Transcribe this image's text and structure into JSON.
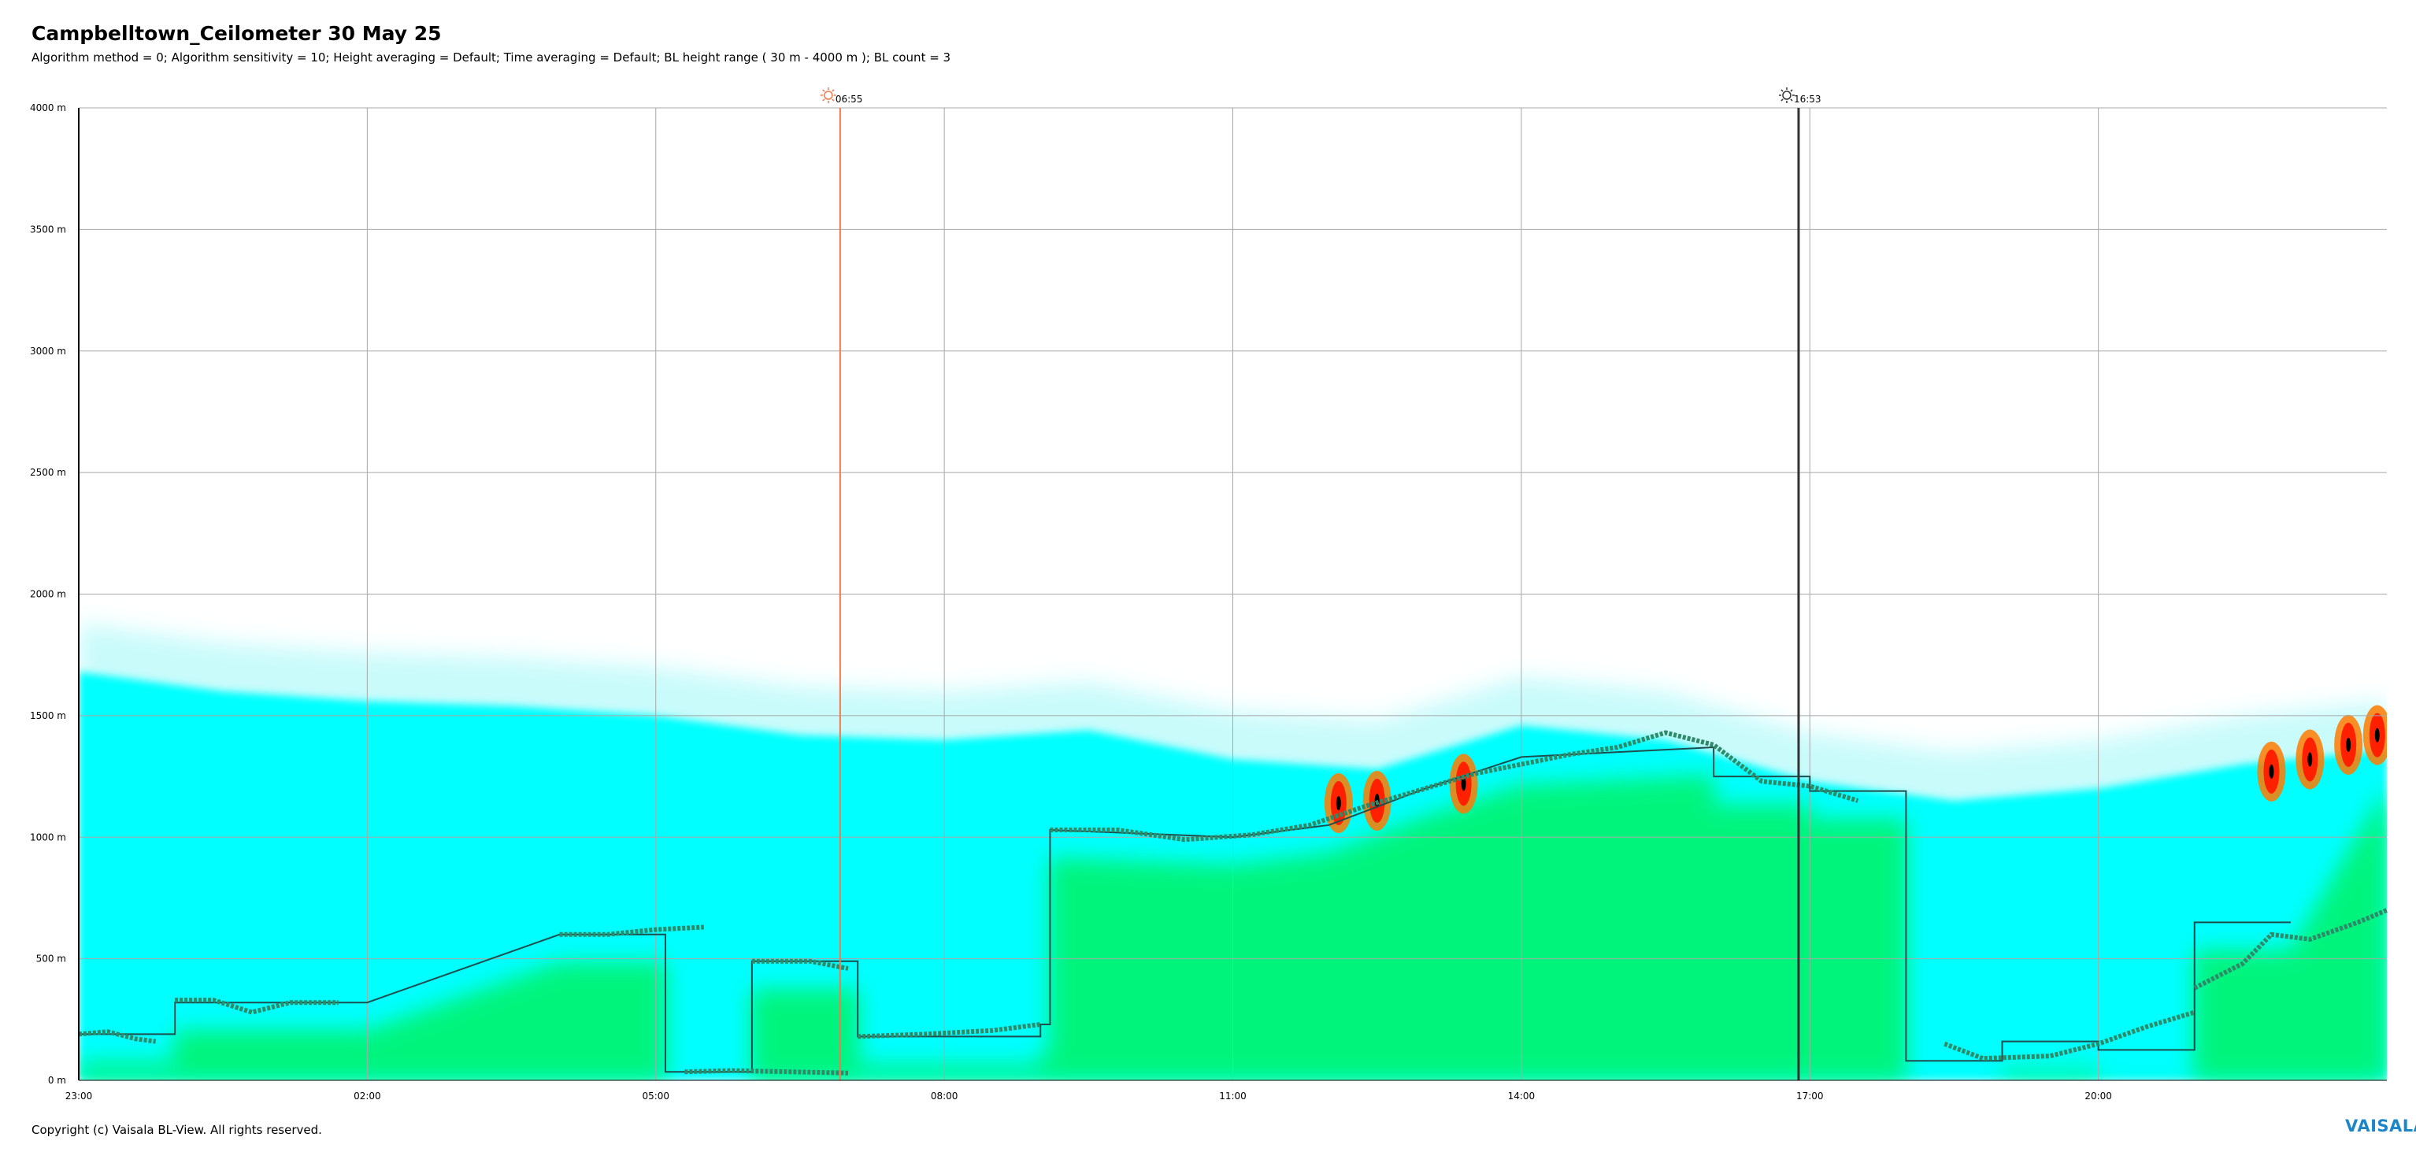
{
  "header": {
    "title": "Campbelltown_Ceilometer 30 May 25",
    "subtitle": "Algorithm method = 0; Algorithm sensitivity = 10; Height averaging = Default; Time averaging = Default; BL height range ( 30 m - 4000 m ); BL count = 3"
  },
  "footer": {
    "copyright": "Copyright (c) Vaisala BL-View. All rights reserved.",
    "brand": "VAISALA"
  },
  "chart_data": {
    "type": "heatmap",
    "title": "Campbelltown_Ceilometer 30 May 25",
    "xlabel": "",
    "ylabel": "",
    "x_tick_labels": [
      "23:00",
      "02:00",
      "05:00",
      "08:00",
      "11:00",
      "14:00",
      "17:00",
      "20:00"
    ],
    "y_tick_labels": [
      "0 m",
      "500 m",
      "1000 m",
      "1500 m",
      "2000 m",
      "2500 m",
      "3000 m",
      "3500 m",
      "4000 m"
    ],
    "x_range_hours": [
      23,
      47
    ],
    "ylim": [
      0,
      4000
    ],
    "grid": true,
    "events": [
      {
        "label": "06:55",
        "time": 30.917,
        "type": "sunrise",
        "color": "#f07a4e"
      },
      {
        "label": "16:53",
        "time": 40.883,
        "type": "sunset",
        "color": "#333333"
      }
    ],
    "backscatter_top_height": [
      [
        23.0,
        1880
      ],
      [
        24.5,
        1800
      ],
      [
        26.0,
        1760
      ],
      [
        27.5,
        1740
      ],
      [
        29.0,
        1700
      ],
      [
        30.5,
        1620
      ],
      [
        32.0,
        1600
      ],
      [
        33.5,
        1640
      ],
      [
        35.0,
        1520
      ],
      [
        36.5,
        1480
      ],
      [
        38.0,
        1660
      ],
      [
        39.5,
        1600
      ],
      [
        41.0,
        1430
      ],
      [
        42.5,
        1350
      ],
      [
        44.0,
        1400
      ],
      [
        45.5,
        1500
      ],
      [
        47.0,
        1560
      ]
    ],
    "bl_height_stepped": [
      [
        23.0,
        190
      ],
      [
        24.0,
        190
      ],
      [
        24.0,
        320
      ],
      [
        26.0,
        320
      ],
      [
        28.0,
        600
      ],
      [
        29.1,
        600
      ],
      [
        29.1,
        35
      ],
      [
        30.0,
        35
      ],
      [
        30.0,
        490
      ],
      [
        31.1,
        490
      ],
      [
        31.1,
        180
      ],
      [
        33.0,
        180
      ],
      [
        33.0,
        230
      ],
      [
        33.1,
        230
      ],
      [
        33.1,
        1030
      ],
      [
        35.0,
        1000
      ],
      [
        36.0,
        1050
      ],
      [
        37.0,
        1200
      ],
      [
        38.0,
        1330
      ],
      [
        40.0,
        1370
      ],
      [
        40.0,
        1250
      ],
      [
        41.0,
        1250
      ],
      [
        41.0,
        1190
      ],
      [
        42.0,
        1190
      ],
      [
        42.0,
        80
      ],
      [
        43.0,
        80
      ],
      [
        43.0,
        160
      ],
      [
        44.0,
        160
      ],
      [
        44.0,
        125
      ],
      [
        45.0,
        125
      ],
      [
        45.0,
        650
      ],
      [
        46.0,
        650
      ]
    ],
    "bl_layer_series": [
      {
        "points": [
          [
            23.0,
            190
          ],
          [
            23.3,
            200
          ],
          [
            23.6,
            170
          ],
          [
            23.8,
            160
          ]
        ]
      },
      {
        "points": [
          [
            24.0,
            330
          ],
          [
            24.4,
            330
          ],
          [
            24.8,
            280
          ],
          [
            25.2,
            320
          ],
          [
            25.7,
            320
          ]
        ]
      },
      {
        "points": [
          [
            28.0,
            600
          ],
          [
            28.5,
            600
          ],
          [
            29.0,
            620
          ],
          [
            29.5,
            630
          ]
        ]
      },
      {
        "points": [
          [
            29.3,
            35
          ],
          [
            29.8,
            40
          ],
          [
            30.4,
            35
          ],
          [
            31.0,
            30
          ]
        ]
      },
      {
        "points": [
          [
            30.0,
            490
          ],
          [
            30.6,
            490
          ],
          [
            31.0,
            460
          ]
        ]
      },
      {
        "points": [
          [
            31.1,
            180
          ],
          [
            31.8,
            190
          ],
          [
            32.5,
            205
          ],
          [
            33.0,
            230
          ]
        ]
      },
      {
        "points": [
          [
            33.1,
            1030
          ],
          [
            33.8,
            1030
          ],
          [
            34.5,
            990
          ],
          [
            35.2,
            1010
          ],
          [
            35.8,
            1050
          ],
          [
            36.4,
            1130
          ],
          [
            37.0,
            1200
          ],
          [
            37.5,
            1260
          ],
          [
            38.0,
            1300
          ],
          [
            38.5,
            1340
          ],
          [
            39.0,
            1370
          ],
          [
            39.5,
            1430
          ],
          [
            40.0,
            1380
          ],
          [
            40.5,
            1230
          ],
          [
            41.0,
            1210
          ],
          [
            41.5,
            1150
          ]
        ]
      },
      {
        "points": [
          [
            42.4,
            150
          ],
          [
            42.8,
            90
          ],
          [
            43.5,
            100
          ],
          [
            44.0,
            150
          ],
          [
            44.5,
            220
          ],
          [
            45.0,
            280
          ]
        ]
      },
      {
        "points": [
          [
            45.0,
            380
          ],
          [
            45.5,
            480
          ],
          [
            45.8,
            600
          ],
          [
            46.2,
            580
          ],
          [
            46.7,
            650
          ],
          [
            47.0,
            700
          ]
        ]
      }
    ],
    "color_scale": [
      "#ffffff",
      "#00ffff",
      "#00ff88",
      "#00e030",
      "#ff2000",
      "#000000"
    ]
  }
}
